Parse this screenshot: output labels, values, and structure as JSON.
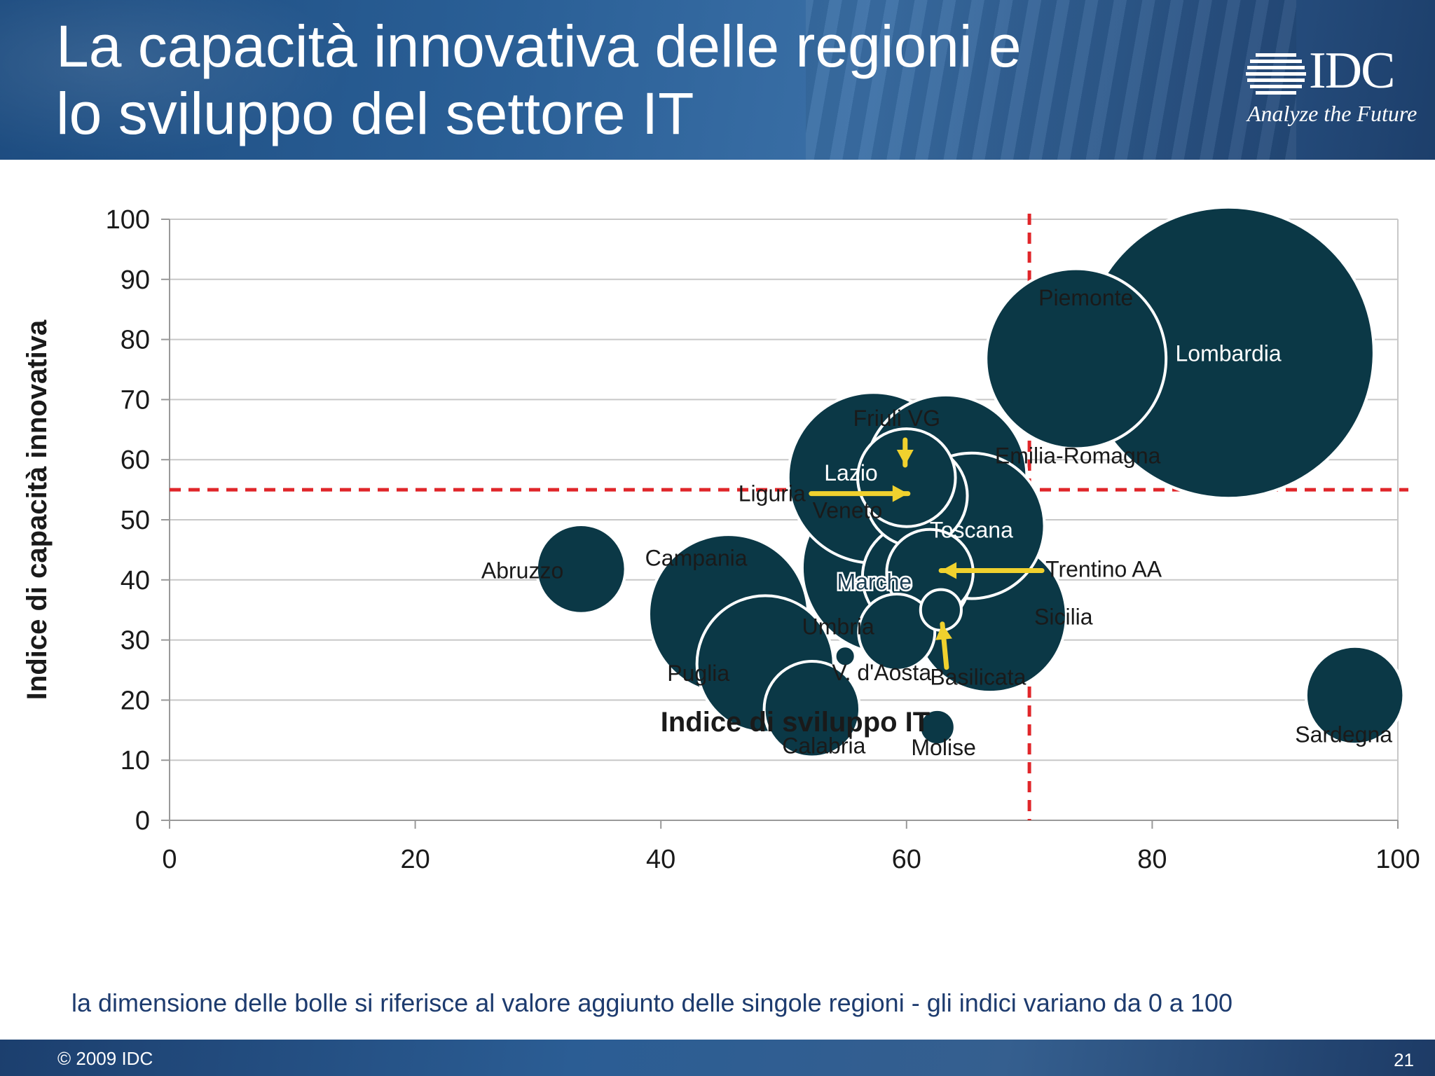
{
  "slide": {
    "title_line1": "La capacità innovativa delle regioni e",
    "title_line2": "lo sviluppo del settore IT",
    "logo": {
      "name": "IDC",
      "tagline": "Analyze the Future"
    },
    "footnote": "la dimensione delle bolle si riferisce al valore aggiunto delle singole regioni - gli indici variano da 0 a 100",
    "copyright": "© 2009 IDC",
    "page_number": "21"
  },
  "colors": {
    "bubble": "#0b3846",
    "bubble_label_inside": "#ffffff",
    "bubble_label_dark": "#1a3d52",
    "threshold_line": "#e0262a",
    "arrow": "#f0d12e",
    "grid": "#c8c8c8",
    "axis_text": "#1a1a1a"
  },
  "chart_data": {
    "type": "scatter",
    "xlabel": "Indice di sviluppo IT",
    "ylabel": "Indice di capacità innovativa",
    "xlim": [
      0,
      100
    ],
    "ylim": [
      0,
      100
    ],
    "xticks": [
      "0",
      "20",
      "40",
      "60",
      "80",
      "100"
    ],
    "yticks": [
      "0",
      "10",
      "20",
      "30",
      "40",
      "50",
      "60",
      "70",
      "80",
      "90",
      "100"
    ],
    "grid": "horizontal",
    "thresholds": {
      "x": 70,
      "y": 55
    },
    "points": [
      {
        "label": "Emilia-Romagna",
        "x": 63.2,
        "y": 57.3,
        "size": 6.3
      },
      {
        "label": "Lazio",
        "x": 57.3,
        "y": 57.0,
        "size": 7.0
      },
      {
        "label": "Veneto",
        "x": 58.5,
        "y": 42.0,
        "size": 7.1
      },
      {
        "label": "Toscana",
        "x": 65.3,
        "y": 49.0,
        "size": 5.1
      },
      {
        "label": "Liguria",
        "x": 60.8,
        "y": 54.0,
        "size": 2.5
      },
      {
        "label": "Friuli VG",
        "x": 60.0,
        "y": 57.0,
        "size": 2.3
      },
      {
        "label": "Marche",
        "x": 60.8,
        "y": 40.5,
        "size": 2.8
      },
      {
        "label": "Trentino AA",
        "x": 61.9,
        "y": 41.2,
        "size": 1.8
      },
      {
        "label": "Lombardia",
        "x": 86.2,
        "y": 77.8,
        "size": 20.4
      },
      {
        "label": "Piemonte",
        "x": 73.8,
        "y": 76.8,
        "size": 7.8
      },
      {
        "label": "Sicilia",
        "x": 66.8,
        "y": 34.0,
        "size": 5.6
      },
      {
        "label": "Campania",
        "x": 45.5,
        "y": 34.3,
        "size": 6.1
      },
      {
        "label": "Puglia",
        "x": 48.5,
        "y": 26.0,
        "size": 4.5
      },
      {
        "label": "Abruzzo",
        "x": 33.5,
        "y": 41.8,
        "size": 1.9
      },
      {
        "label": "Calabria",
        "x": 52.3,
        "y": 18.5,
        "size": 2.2
      },
      {
        "label": "Umbria",
        "x": 59.2,
        "y": 31.3,
        "size": 1.4
      },
      {
        "label": "Basilicata",
        "x": 62.8,
        "y": 35.0,
        "size": 0.4
      },
      {
        "label": "V. d'Aosta",
        "x": 55.0,
        "y": 27.3,
        "size": 0.1
      },
      {
        "label": "Molise",
        "x": 62.5,
        "y": 15.5,
        "size": 0.3
      },
      {
        "label": "Sardegna",
        "x": 96.5,
        "y": 20.8,
        "size": 2.3
      }
    ]
  }
}
